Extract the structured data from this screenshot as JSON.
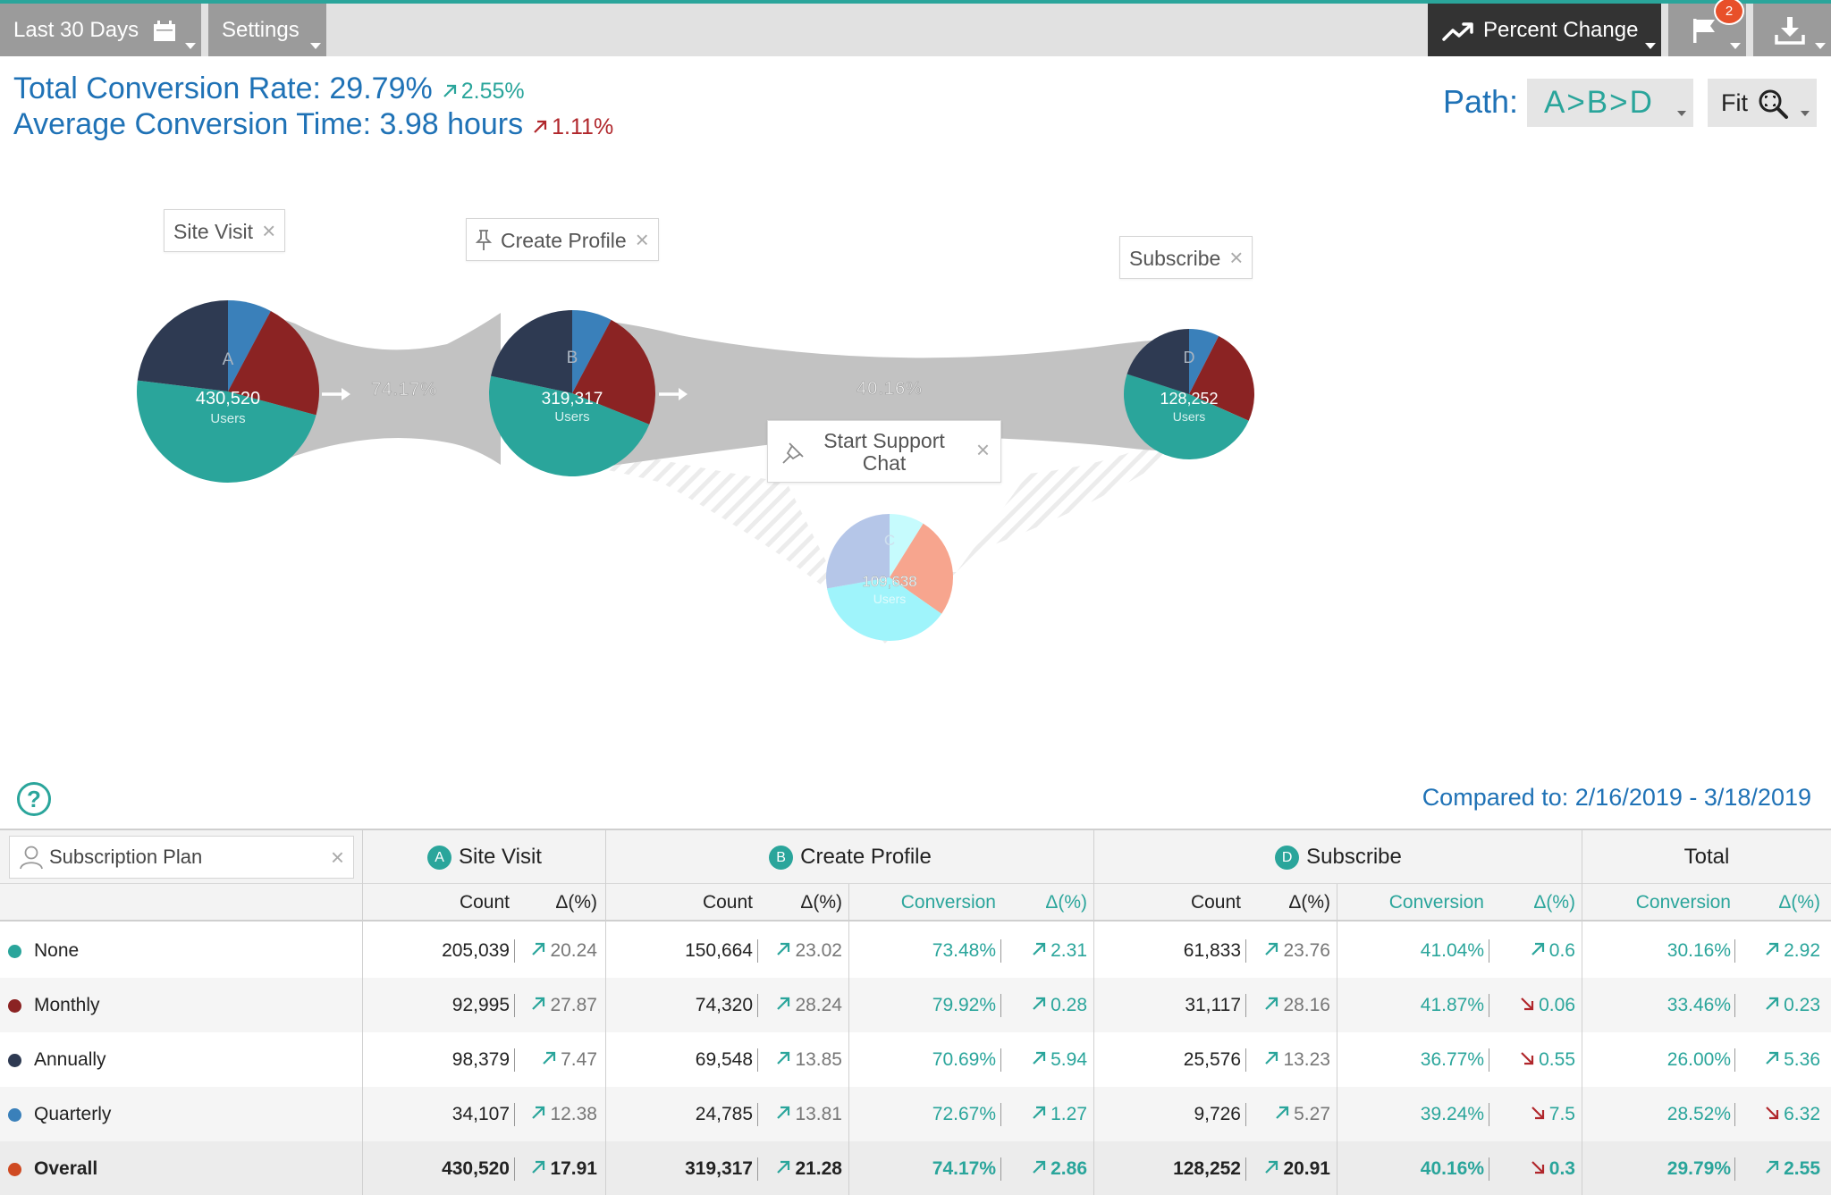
{
  "toolbar": {
    "date_range": "Last 30 Days",
    "settings": "Settings",
    "percent_change": "Percent Change",
    "flag_badge": "2"
  },
  "stats": {
    "conversion_rate_label": "Total Conversion Rate: 29.79%",
    "conversion_rate_change": "2.55%",
    "conversion_time_label": "Average Conversion Time: 3.98 hours",
    "conversion_time_change": "1.11%"
  },
  "path": {
    "label": "Path:",
    "value": "A>B>D",
    "fit": "Fit"
  },
  "diagram": {
    "nodes": {
      "a": {
        "letter": "A",
        "label": "Site Visit",
        "count": "430,520",
        "unit": "Users"
      },
      "b": {
        "letter": "B",
        "label": "Create Profile",
        "count": "319,317",
        "unit": "Users"
      },
      "c": {
        "letter": "C",
        "label": "Start Support Chat",
        "count": "109,638",
        "unit": "Users"
      },
      "d": {
        "letter": "D",
        "label": "Subscribe",
        "count": "128,252",
        "unit": "Users"
      }
    },
    "flows": {
      "ab": "74.17%",
      "bd": "40.16%"
    },
    "colors": {
      "none": "#2aa59b",
      "monthly": "#8b2323",
      "annually": "#2e3a52",
      "quarterly": "#3a80ba",
      "overall": "#cf4a22",
      "c_blue": "#b5c6e8",
      "c_salmon": "#f7a58e",
      "c_cyan": "#9ff4fb",
      "c_lightcyan": "#c6fbfd"
    }
  },
  "table": {
    "help": "?",
    "compared_to": "Compared to: 2/16/2019 - 3/18/2019",
    "filter": "Subscription Plan",
    "groups": {
      "a": {
        "letter": "A",
        "label": "Site Visit"
      },
      "b": {
        "letter": "B",
        "label": "Create Profile"
      },
      "d": {
        "letter": "D",
        "label": "Subscribe"
      },
      "total": {
        "label": "Total"
      }
    },
    "subheaders": {
      "count": "Count",
      "delta": "Δ(%)",
      "conversion": "Conversion"
    },
    "rows": [
      {
        "name": "None",
        "color": "#2aa59b",
        "a_count": "205,039",
        "a_delta": "20.24",
        "a_dir": "up",
        "b_count": "150,664",
        "b_delta": "23.02",
        "b_dir": "up",
        "b_conv": "73.48%",
        "b_cdelta": "2.31",
        "b_cdir": "up",
        "d_count": "61,833",
        "d_delta": "23.76",
        "d_dir": "up",
        "d_conv": "41.04%",
        "d_cdelta": "0.6",
        "d_cdir": "up",
        "t_conv": "30.16%",
        "t_cdelta": "2.92",
        "t_cdir": "up"
      },
      {
        "name": "Monthly",
        "color": "#8b2323",
        "a_count": "92,995",
        "a_delta": "27.87",
        "a_dir": "up",
        "b_count": "74,320",
        "b_delta": "28.24",
        "b_dir": "up",
        "b_conv": "79.92%",
        "b_cdelta": "0.28",
        "b_cdir": "up",
        "d_count": "31,117",
        "d_delta": "28.16",
        "d_dir": "up",
        "d_conv": "41.87%",
        "d_cdelta": "0.06",
        "d_cdir": "down",
        "t_conv": "33.46%",
        "t_cdelta": "0.23",
        "t_cdir": "up"
      },
      {
        "name": "Annually",
        "color": "#2e3a52",
        "a_count": "98,379",
        "a_delta": "7.47",
        "a_dir": "up",
        "b_count": "69,548",
        "b_delta": "13.85",
        "b_dir": "up",
        "b_conv": "70.69%",
        "b_cdelta": "5.94",
        "b_cdir": "up",
        "d_count": "25,576",
        "d_delta": "13.23",
        "d_dir": "up",
        "d_conv": "36.77%",
        "d_cdelta": "0.55",
        "d_cdir": "down",
        "t_conv": "26.00%",
        "t_cdelta": "5.36",
        "t_cdir": "up"
      },
      {
        "name": "Quarterly",
        "color": "#3a80ba",
        "a_count": "34,107",
        "a_delta": "12.38",
        "a_dir": "up",
        "b_count": "24,785",
        "b_delta": "13.81",
        "b_dir": "up",
        "b_conv": "72.67%",
        "b_cdelta": "1.27",
        "b_cdir": "up",
        "d_count": "9,726",
        "d_delta": "5.27",
        "d_dir": "up",
        "d_conv": "39.24%",
        "d_cdelta": "7.5",
        "d_cdir": "down",
        "t_conv": "28.52%",
        "t_cdelta": "6.32",
        "t_cdir": "down"
      },
      {
        "name": "Overall",
        "color": "#cf4a22",
        "a_count": "430,520",
        "a_delta": "17.91",
        "a_dir": "up",
        "b_count": "319,317",
        "b_delta": "21.28",
        "b_dir": "up",
        "b_conv": "74.17%",
        "b_cdelta": "2.86",
        "b_cdir": "up",
        "d_count": "128,252",
        "d_delta": "20.91",
        "d_dir": "up",
        "d_conv": "40.16%",
        "d_cdelta": "0.3",
        "d_cdir": "down",
        "t_conv": "29.79%",
        "t_cdelta": "2.55",
        "t_cdir": "up"
      }
    ]
  }
}
